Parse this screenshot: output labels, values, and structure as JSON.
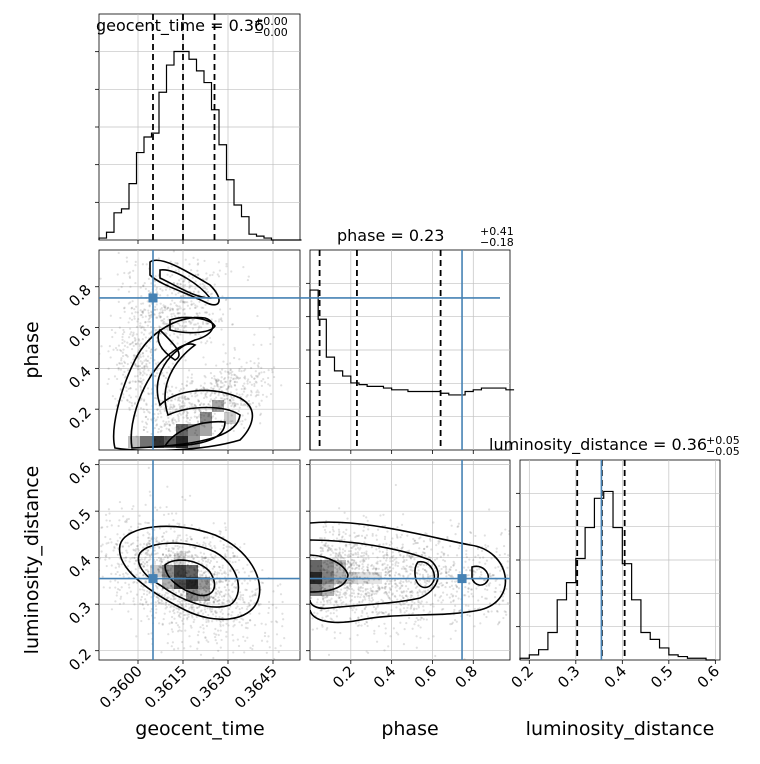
{
  "colors": {
    "truth": "#4682b4",
    "hist": "#000000",
    "grid": "#c0c0c0",
    "scatter": "#555555"
  },
  "chart_data": {
    "type": "corner",
    "parameters": [
      "geocent_time",
      "phase",
      "luminosity_distance"
    ],
    "axis_labels": [
      "geocent_time",
      "phase",
      "luminosity_distance"
    ],
    "titles": [
      {
        "text": "geocent_time = 0.36",
        "sup": "+0.00",
        "sub": "−0.00"
      },
      {
        "text": "phase = 0.23",
        "sup": "+0.41",
        "sub": "−0.18"
      },
      {
        "text": "luminosity_distance = 0.36",
        "sup": "+0.05",
        "sub": "−0.05"
      }
    ],
    "ranges": [
      [
        0.3587,
        0.3654
      ],
      [
        0.0,
        0.98
      ],
      [
        0.18,
        0.61
      ]
    ],
    "ticks": {
      "geocent_time": [
        0.36,
        0.3615,
        0.363,
        0.3645
      ],
      "phase": [
        0.2,
        0.4,
        0.6,
        0.8
      ],
      "luminosity_distance": [
        0.2,
        0.3,
        0.4,
        0.5,
        0.6
      ]
    },
    "tick_labels": {
      "geocent_time": [
        "0.3600",
        "0.3615",
        "0.3630",
        "0.3645"
      ],
      "phase": [
        "0.2",
        "0.4",
        "0.6",
        "0.8"
      ],
      "luminosity_distance": [
        "0.2",
        "0.3",
        "0.4",
        "0.5",
        "0.6"
      ]
    },
    "truths": [
      0.3605,
      0.745,
      0.355
    ],
    "quantiles": [
      [
        0.3605,
        0.3615,
        0.36255
      ],
      [
        0.047,
        0.23,
        0.64
      ],
      [
        0.303,
        0.356,
        0.405
      ]
    ],
    "histograms": [
      {
        "bin_edges_start": 0.3587,
        "bin_width": 0.00025,
        "counts": [
          0.01,
          0.04,
          0.14,
          0.16,
          0.29,
          0.45,
          0.53,
          0.55,
          0.76,
          0.9,
          0.97,
          0.97,
          0.93,
          0.87,
          0.81,
          0.67,
          0.49,
          0.31,
          0.18,
          0.12,
          0.03,
          0.02,
          0.01,
          0.0,
          0.0,
          0.0,
          0.0
        ]
      },
      {
        "bin_edges_start": 0.0,
        "bin_width": 0.04,
        "counts": [
          0.93,
          0.76,
          0.54,
          0.46,
          0.43,
          0.39,
          0.38,
          0.37,
          0.37,
          0.36,
          0.35,
          0.35,
          0.34,
          0.34,
          0.34,
          0.34,
          0.33,
          0.32,
          0.32,
          0.34,
          0.35,
          0.36,
          0.36,
          0.36,
          0.35
        ]
      },
      {
        "bin_edges_start": 0.18,
        "bin_width": 0.02,
        "counts": [
          0.01,
          0.03,
          0.06,
          0.16,
          0.35,
          0.45,
          0.59,
          0.77,
          0.94,
          0.98,
          0.77,
          0.56,
          0.35,
          0.16,
          0.12,
          0.07,
          0.03,
          0.02,
          0.01,
          0.01,
          0.0
        ]
      }
    ],
    "plot_2d": {
      "phase_vs_geocent_time": {
        "description_free": true,
        "dense_cells": [
          {
            "x": 0.3604,
            "y": 0.02,
            "v": 0.85
          },
          {
            "x": 0.3609,
            "y": 0.02,
            "v": 0.9
          },
          {
            "x": 0.3614,
            "y": 0.04,
            "v": 0.8
          },
          {
            "x": 0.3619,
            "y": 0.07,
            "v": 0.7
          },
          {
            "x": 0.3624,
            "y": 0.1,
            "v": 0.55
          },
          {
            "x": 0.3629,
            "y": 0.15,
            "v": 0.5
          },
          {
            "x": 0.3624,
            "y": 0.2,
            "v": 0.35
          },
          {
            "x": 0.3619,
            "y": 0.15,
            "v": 0.45
          }
        ]
      }
    }
  }
}
